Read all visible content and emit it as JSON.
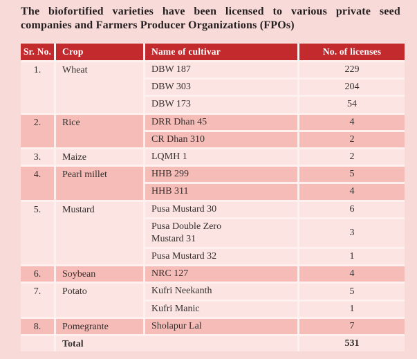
{
  "title": "The biofortified varieties have been licensed to various private seed companies and Farmers Producer Organizations (FPOs)",
  "colors": {
    "page_bg": "#f8dad8",
    "header_bg": "#c22a2d",
    "header_text": "#ffffff",
    "row_light": "#fbe4e2",
    "row_dark": "#f6bcb8",
    "grid_gap": "#fdf0ee",
    "title_text": "#241e1f",
    "body_text": "#352f2e"
  },
  "table": {
    "headers": [
      "Sr. No.",
      "Crop",
      "Name of cultivar",
      "No. of licenses"
    ],
    "groups": [
      {
        "sr_no": "1.",
        "crop": "Wheat",
        "shade": "light",
        "cultivars": [
          {
            "name": "DBW 187",
            "licenses": "229"
          },
          {
            "name": "DBW 303",
            "licenses": "204"
          },
          {
            "name": "DBW 173",
            "licenses": "54"
          }
        ]
      },
      {
        "sr_no": "2.",
        "crop": "Rice",
        "shade": "dark",
        "cultivars": [
          {
            "name": "DRR Dhan 45",
            "licenses": "4"
          },
          {
            "name": "CR Dhan 310",
            "licenses": "2"
          }
        ]
      },
      {
        "sr_no": "3.",
        "crop": "Maize",
        "shade": "light",
        "cultivars": [
          {
            "name": "LQMH 1",
            "licenses": "2"
          }
        ]
      },
      {
        "sr_no": "4.",
        "crop": "Pearl millet",
        "shade": "dark",
        "cultivars": [
          {
            "name": "HHB 299",
            "licenses": "5"
          },
          {
            "name": "HHB 311",
            "licenses": "4"
          }
        ]
      },
      {
        "sr_no": "5.",
        "crop": "Mustard",
        "shade": "light",
        "cultivars": [
          {
            "name": "Pusa Mustard 30",
            "licenses": "6"
          },
          {
            "name": "Pusa Double Zero\nMustard 31",
            "licenses": "3"
          },
          {
            "name": "Pusa Mustard 32",
            "licenses": "1"
          }
        ]
      },
      {
        "sr_no": "6.",
        "crop": "Soybean",
        "shade": "dark",
        "cultivars": [
          {
            "name": "NRC 127",
            "licenses": "4"
          }
        ]
      },
      {
        "sr_no": "7.",
        "crop": "Potato",
        "shade": "light",
        "cultivars": [
          {
            "name": "Kufri Neekanth",
            "licenses": "5"
          },
          {
            "name": "Kufri Manic",
            "licenses": "1"
          }
        ]
      },
      {
        "sr_no": "8.",
        "crop": "Pomegrante",
        "shade": "dark",
        "cultivars": [
          {
            "name": "Sholapur Lal",
            "licenses": "7"
          }
        ]
      }
    ],
    "total": {
      "label": "Total",
      "licenses": "531",
      "shade": "light"
    }
  }
}
